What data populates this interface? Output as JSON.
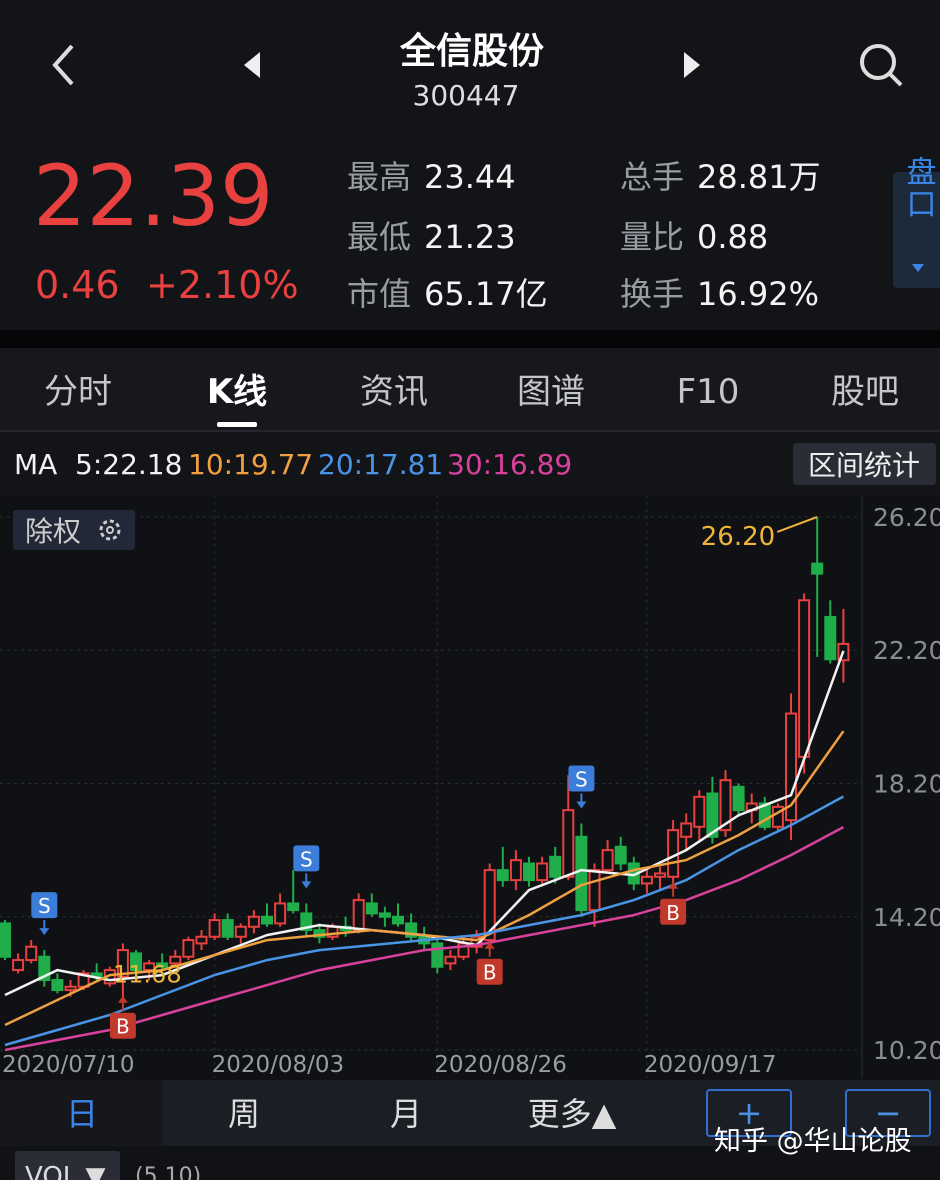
{
  "header": {
    "title": "全信股份",
    "code": "300447"
  },
  "quote": {
    "price": "22.39",
    "change": "0.46",
    "percent": "+2.10%"
  },
  "stats": [
    {
      "label": "最高",
      "value": "23.44"
    },
    {
      "label": "最低",
      "value": "21.23"
    },
    {
      "label": "市值",
      "value": "65.17亿"
    },
    {
      "label": "总手",
      "value": "28.81万"
    },
    {
      "label": "量比",
      "value": "0.88"
    },
    {
      "label": "换手",
      "value": "16.92%"
    }
  ],
  "side_button": "盘口",
  "tabs": [
    "分时",
    "K线",
    "资讯",
    "图谱",
    "F10",
    "股吧"
  ],
  "active_tab": 1,
  "ma_bar": {
    "label": "MA",
    "items": [
      {
        "text": "5:22.18",
        "color": "#f2f2f2"
      },
      {
        "text": "10:19.77",
        "color": "#f0a040"
      },
      {
        "text": "20:17.81",
        "color": "#4a94e6"
      },
      {
        "text": "30:16.89",
        "color": "#d8429c"
      }
    ],
    "button": "区间统计"
  },
  "chart_button": "除权",
  "chart_data": {
    "type": "candlestick",
    "categories": [
      "2020/07/10",
      null,
      null,
      null,
      null,
      null,
      null,
      null,
      null,
      null,
      null,
      null,
      null,
      null,
      null,
      null,
      "2020/08/03",
      null,
      null,
      null,
      null,
      null,
      null,
      null,
      null,
      null,
      null,
      null,
      null,
      null,
      null,
      null,
      null,
      "2020/08/26",
      null,
      null,
      null,
      null,
      null,
      null,
      null,
      null,
      null,
      null,
      null,
      null,
      null,
      null,
      null,
      "2020/09/17",
      null,
      null,
      null,
      null,
      null,
      null,
      null,
      null,
      null,
      null,
      null,
      null,
      null,
      null,
      null
    ],
    "ohlc": [
      [
        14.0,
        14.1,
        12.9,
        13.0
      ],
      [
        12.6,
        13.1,
        12.5,
        12.9
      ],
      [
        12.9,
        13.5,
        12.8,
        13.3
      ],
      [
        13.0,
        13.2,
        12.1,
        12.3
      ],
      [
        12.3,
        12.5,
        11.9,
        12.0
      ],
      [
        12.0,
        12.3,
        11.8,
        12.1
      ],
      [
        12.1,
        12.6,
        12.0,
        12.5
      ],
      [
        12.5,
        12.8,
        12.3,
        12.4
      ],
      [
        12.2,
        12.7,
        12.1,
        12.6
      ],
      [
        12.4,
        13.4,
        11.68,
        13.2
      ],
      [
        13.1,
        13.2,
        12.5,
        12.6
      ],
      [
        12.6,
        12.9,
        12.3,
        12.8
      ],
      [
        12.8,
        13.1,
        12.6,
        12.7
      ],
      [
        12.8,
        13.2,
        12.7,
        13.0
      ],
      [
        13.0,
        13.6,
        12.9,
        13.5
      ],
      [
        13.4,
        13.8,
        13.2,
        13.6
      ],
      [
        13.6,
        14.3,
        13.5,
        14.1
      ],
      [
        14.1,
        14.3,
        13.5,
        13.6
      ],
      [
        13.6,
        14.0,
        13.4,
        13.9
      ],
      [
        13.9,
        14.4,
        13.7,
        14.2
      ],
      [
        14.2,
        14.6,
        13.9,
        14.0
      ],
      [
        14.0,
        14.9,
        13.9,
        14.6
      ],
      [
        14.6,
        15.6,
        14.3,
        14.4
      ],
      [
        14.3,
        14.6,
        13.6,
        13.8
      ],
      [
        13.8,
        14.0,
        13.4,
        13.6
      ],
      [
        13.6,
        14.0,
        13.5,
        13.9
      ],
      [
        13.9,
        14.2,
        13.6,
        13.8
      ],
      [
        13.8,
        14.9,
        13.7,
        14.7
      ],
      [
        14.6,
        14.9,
        14.2,
        14.3
      ],
      [
        14.3,
        14.5,
        13.9,
        14.2
      ],
      [
        14.2,
        14.6,
        13.9,
        14.0
      ],
      [
        14.0,
        14.3,
        13.5,
        13.6
      ],
      [
        13.6,
        13.9,
        13.2,
        13.4
      ],
      [
        13.4,
        13.5,
        12.5,
        12.7
      ],
      [
        12.8,
        13.2,
        12.6,
        13.0
      ],
      [
        13.0,
        13.6,
        12.9,
        13.4
      ],
      [
        13.3,
        13.8,
        13.1,
        13.6
      ],
      [
        13.5,
        15.8,
        13.3,
        15.6
      ],
      [
        15.6,
        16.3,
        15.1,
        15.3
      ],
      [
        15.3,
        16.2,
        15.0,
        15.9
      ],
      [
        15.8,
        16.0,
        15.1,
        15.3
      ],
      [
        15.3,
        16.0,
        15.2,
        15.8
      ],
      [
        16.0,
        16.3,
        15.2,
        15.4
      ],
      [
        15.4,
        18.45,
        15.3,
        17.4
      ],
      [
        16.6,
        17.0,
        14.2,
        14.4
      ],
      [
        14.4,
        15.8,
        13.9,
        15.6
      ],
      [
        15.6,
        16.5,
        15.5,
        16.2
      ],
      [
        16.3,
        16.6,
        15.6,
        15.8
      ],
      [
        15.8,
        16.0,
        15.0,
        15.2
      ],
      [
        15.2,
        15.6,
        14.9,
        15.4
      ],
      [
        15.4,
        15.7,
        15.0,
        15.5
      ],
      [
        15.4,
        17.1,
        15.1,
        16.8
      ],
      [
        16.6,
        17.3,
        16.2,
        17.0
      ],
      [
        16.9,
        18.0,
        16.5,
        17.8
      ],
      [
        17.9,
        18.4,
        16.4,
        16.6
      ],
      [
        16.8,
        18.6,
        16.6,
        18.3
      ],
      [
        18.1,
        18.2,
        17.2,
        17.4
      ],
      [
        17.4,
        17.9,
        17.0,
        17.6
      ],
      [
        17.6,
        17.8,
        16.8,
        16.9
      ],
      [
        16.9,
        17.6,
        16.8,
        17.5
      ],
      [
        17.1,
        20.9,
        16.5,
        20.3
      ],
      [
        19.0,
        23.9,
        18.5,
        23.7
      ],
      [
        24.8,
        26.2,
        22.0,
        24.5
      ],
      [
        23.2,
        23.7,
        21.8,
        21.93
      ],
      [
        21.9,
        23.44,
        21.23,
        22.39
      ]
    ],
    "up_color": "#e8413f",
    "down_color": "#1fae4a",
    "ylim": [
      9.36,
      26.86
    ],
    "yticks": [
      {
        "value": 26.2,
        "label": "26.20"
      },
      {
        "value": 22.2,
        "label": "22.20"
      },
      {
        "value": 18.2,
        "label": "18.20"
      },
      {
        "value": 14.2,
        "label": "14.20"
      },
      {
        "value": 10.2,
        "label": "10.20"
      }
    ],
    "grid": true,
    "ma_lines": {
      "x": [
        0,
        4,
        8,
        12,
        16,
        20,
        24,
        28,
        32,
        36,
        40,
        44,
        48,
        52,
        56,
        60,
        64
      ],
      "series": [
        {
          "color": "#f2f2f2",
          "values": [
            11.85,
            12.6,
            12.3,
            12.45,
            13.05,
            13.65,
            13.95,
            13.8,
            13.65,
            13.35,
            15.0,
            15.6,
            15.45,
            16.2,
            17.25,
            17.85,
            22.18
          ]
        },
        {
          "color": "#f0a040",
          "values": [
            10.95,
            11.7,
            12.45,
            12.6,
            13.05,
            13.5,
            13.65,
            13.8,
            13.65,
            13.5,
            14.25,
            15.15,
            15.6,
            15.9,
            16.65,
            17.55,
            19.77
          ]
        },
        {
          "color": "#4a94e6",
          "values": [
            10.35,
            10.8,
            11.25,
            11.85,
            12.45,
            12.9,
            13.2,
            13.35,
            13.5,
            13.65,
            13.95,
            14.25,
            14.7,
            15.3,
            16.2,
            16.95,
            17.81
          ]
        },
        {
          "color": "#d8429c",
          "values": [
            10.2,
            10.5,
            10.8,
            11.25,
            11.7,
            12.15,
            12.6,
            12.9,
            13.2,
            13.35,
            13.65,
            13.95,
            14.25,
            14.7,
            15.3,
            16.05,
            16.89
          ]
        }
      ]
    },
    "markers": [
      {
        "index": 3,
        "label": "S"
      },
      {
        "index": 23,
        "label": "S"
      },
      {
        "index": 44,
        "label": "S"
      },
      {
        "index": 9,
        "label": "B"
      },
      {
        "index": 37,
        "label": "B"
      },
      {
        "index": 51,
        "label": "B"
      }
    ],
    "extreme_labels": [
      {
        "index": 62,
        "label": "26.20",
        "kind": "high"
      },
      {
        "index": 9,
        "label": "11.68",
        "kind": "low"
      }
    ]
  },
  "periods": [
    "日",
    "周",
    "月",
    "更多▲"
  ],
  "zoom": [
    "+",
    "−"
  ],
  "watermark": "知乎 @华山论股",
  "indicator": {
    "name": "VOL ▼",
    "params": "(5,10)"
  }
}
